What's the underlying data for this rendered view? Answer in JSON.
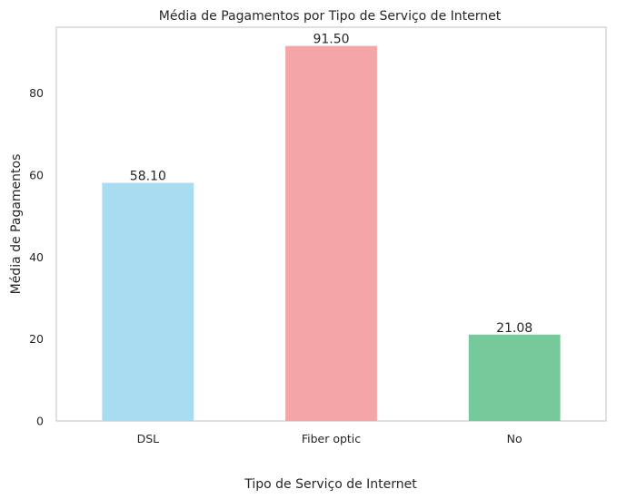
{
  "chart_data": {
    "type": "bar",
    "title": "Média de Pagamentos por Tipo de Serviço de Internet",
    "xlabel": "Tipo de Serviço de Internet",
    "ylabel": "Média de Pagamentos",
    "categories": [
      "DSL",
      "Fiber optic",
      "No"
    ],
    "values": [
      58.1,
      91.5,
      21.08
    ],
    "value_labels": [
      "58.10",
      "91.50",
      "21.08"
    ],
    "colors": [
      "#a8dcf0",
      "#f4a6a7",
      "#76c99b"
    ],
    "ylim": [
      0,
      96.075
    ],
    "yticks": [
      0,
      20,
      40,
      60,
      80
    ],
    "grid": false,
    "legend": "none"
  }
}
